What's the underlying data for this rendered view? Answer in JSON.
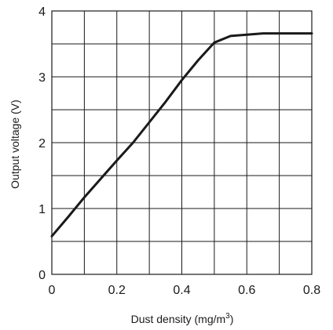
{
  "chart_data": {
    "type": "line",
    "xlabel": "Dust density (mg/m",
    "xlabel_sup": "3",
    "xlabel_suffix": ")",
    "ylabel": "Output voltage (V)",
    "xlim": [
      0,
      0.8
    ],
    "ylim": [
      0,
      4
    ],
    "grid": true,
    "x_tick_labels": [
      "0",
      "0.2",
      "0.4",
      "0.6",
      "0.8"
    ],
    "y_tick_labels": [
      "0",
      "1",
      "2",
      "3",
      "4"
    ],
    "series": [
      {
        "points": [
          [
            0.0,
            0.58
          ],
          [
            0.05,
            0.87
          ],
          [
            0.1,
            1.17
          ],
          [
            0.15,
            1.45
          ],
          [
            0.2,
            1.73
          ],
          [
            0.25,
            2.0
          ],
          [
            0.3,
            2.31
          ],
          [
            0.35,
            2.62
          ],
          [
            0.4,
            2.95
          ],
          [
            0.45,
            3.25
          ],
          [
            0.5,
            3.52
          ],
          [
            0.55,
            3.62
          ],
          [
            0.6,
            3.64
          ],
          [
            0.65,
            3.66
          ],
          [
            0.7,
            3.66
          ],
          [
            0.8,
            3.66
          ]
        ]
      }
    ]
  }
}
